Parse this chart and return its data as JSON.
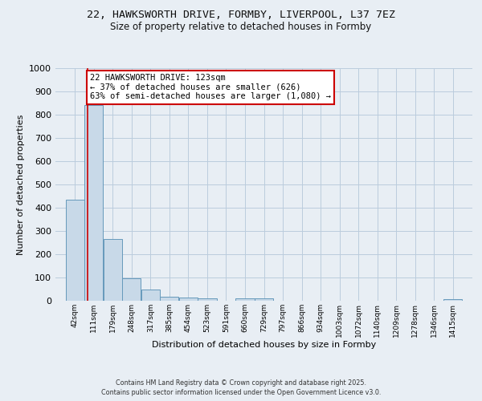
{
  "title_line1": "22, HAWKSWORTH DRIVE, FORMBY, LIVERPOOL, L37 7EZ",
  "title_line2": "Size of property relative to detached houses in Formby",
  "xlabel": "Distribution of detached houses by size in Formby",
  "ylabel": "Number of detached properties",
  "bar_edges": [
    42,
    111,
    179,
    248,
    317,
    385,
    454,
    523,
    591,
    660,
    729,
    797,
    866,
    934,
    1003,
    1072,
    1140,
    1209,
    1278,
    1346,
    1415
  ],
  "bar_heights": [
    435,
    840,
    265,
    95,
    47,
    18,
    15,
    10,
    0,
    10,
    10,
    0,
    0,
    0,
    0,
    0,
    0,
    0,
    0,
    0,
    8
  ],
  "bar_color": "#c8d9e8",
  "bar_edgecolor": "#6699bb",
  "grid_color": "#bbccdd",
  "property_sqm": 123,
  "red_line_color": "#cc0000",
  "annotation_line1": "22 HAWKSWORTH DRIVE: 123sqm",
  "annotation_line2": "← 37% of detached houses are smaller (626)",
  "annotation_line3": "63% of semi-detached houses are larger (1,080) →",
  "annotation_box_edgecolor": "#cc0000",
  "annotation_box_facecolor": "#ffffff",
  "ylim": [
    0,
    1000
  ],
  "yticks": [
    0,
    100,
    200,
    300,
    400,
    500,
    600,
    700,
    800,
    900,
    1000
  ],
  "footer_line1": "Contains HM Land Registry data © Crown copyright and database right 2025.",
  "footer_line2": "Contains public sector information licensed under the Open Government Licence v3.0.",
  "background_color": "#e8eef4",
  "plot_bg_color": "#e8eef4",
  "title1_fontsize": 9.5,
  "title2_fontsize": 8.5,
  "ylabel_fontsize": 8,
  "xlabel_fontsize": 8,
  "ytick_fontsize": 8,
  "xtick_fontsize": 6.5,
  "annotation_fontsize": 7.5,
  "footer_fontsize": 5.8
}
